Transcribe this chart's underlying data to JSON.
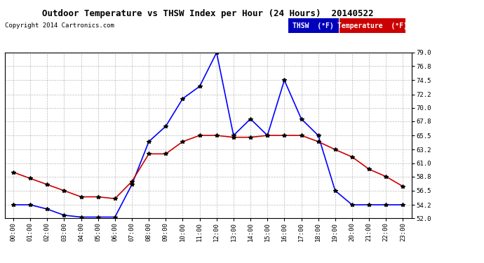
{
  "title": "Outdoor Temperature vs THSW Index per Hour (24 Hours)  20140522",
  "copyright": "Copyright 2014 Cartronics.com",
  "background_color": "#ffffff",
  "plot_bg_color": "#ffffff",
  "grid_color": "#aaaaaa",
  "ylim": [
    52.0,
    79.0
  ],
  "yticks": [
    52.0,
    54.2,
    56.5,
    58.8,
    61.0,
    63.2,
    65.5,
    67.8,
    70.0,
    72.2,
    74.5,
    76.8,
    79.0
  ],
  "hours": [
    "00:00",
    "01:00",
    "02:00",
    "03:00",
    "04:00",
    "05:00",
    "06:00",
    "07:00",
    "08:00",
    "09:00",
    "10:00",
    "11:00",
    "12:00",
    "13:00",
    "14:00",
    "15:00",
    "16:00",
    "17:00",
    "18:00",
    "19:00",
    "20:00",
    "21:00",
    "22:00",
    "23:00"
  ],
  "thsw": [
    54.2,
    54.2,
    53.5,
    52.5,
    52.2,
    52.2,
    52.2,
    57.5,
    64.5,
    67.0,
    71.5,
    73.5,
    79.0,
    65.5,
    68.2,
    65.5,
    74.5,
    68.2,
    65.5,
    56.5,
    54.2,
    54.2,
    54.2,
    54.2
  ],
  "temp": [
    59.5,
    58.5,
    57.5,
    56.5,
    55.5,
    55.5,
    55.2,
    58.0,
    62.5,
    62.5,
    64.5,
    65.5,
    65.5,
    65.2,
    65.2,
    65.5,
    65.5,
    65.5,
    64.5,
    63.2,
    62.0,
    60.0,
    58.8,
    57.2
  ],
  "thsw_color": "#0000ff",
  "temp_color": "#cc0000",
  "legend_thsw_bg": "#0000bb",
  "legend_temp_bg": "#cc0000",
  "legend_thsw_text": "THSW  (°F)",
  "legend_temp_text": "Temperature  (°F)",
  "marker": "*",
  "marker_size": 4,
  "line_width": 1.2
}
